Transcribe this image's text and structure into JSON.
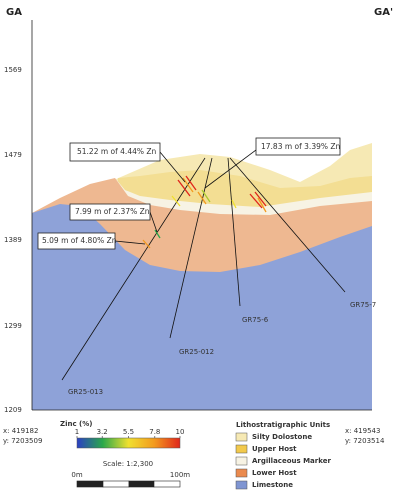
{
  "header": {
    "left": "GA",
    "right": "GA'"
  },
  "elevations": [
    1569,
    1479,
    1389,
    1299,
    1209
  ],
  "annotations": [
    "51.22 m of 4.44% Zn",
    "17.83 m of 3.39% Zn",
    "7.99 m of 2.37% Zn",
    "5.09 m of 4.80% Zn"
  ],
  "drillholes": [
    "GR25-013",
    "GR25-012",
    "GR75-6",
    "GR75-7"
  ],
  "zinc_scale": {
    "title": "Zinc (%)",
    "ticks": [
      1,
      3.2,
      5.5,
      7.8,
      10
    ]
  },
  "scale": {
    "label": "Scale: 1:2,300",
    "start": "0m",
    "end": "100m"
  },
  "coordinates": {
    "left": {
      "x": "x: 419182",
      "y": "y: 7203509"
    },
    "right": {
      "x": "x: 419543",
      "y": "y: 7203514"
    }
  },
  "legend": {
    "title": "Lithostratigraphic Units",
    "items": [
      "Silty Dolostone",
      "Upper Host",
      "Argillaceous Marker",
      "Lower Host",
      "Limestone"
    ]
  }
}
